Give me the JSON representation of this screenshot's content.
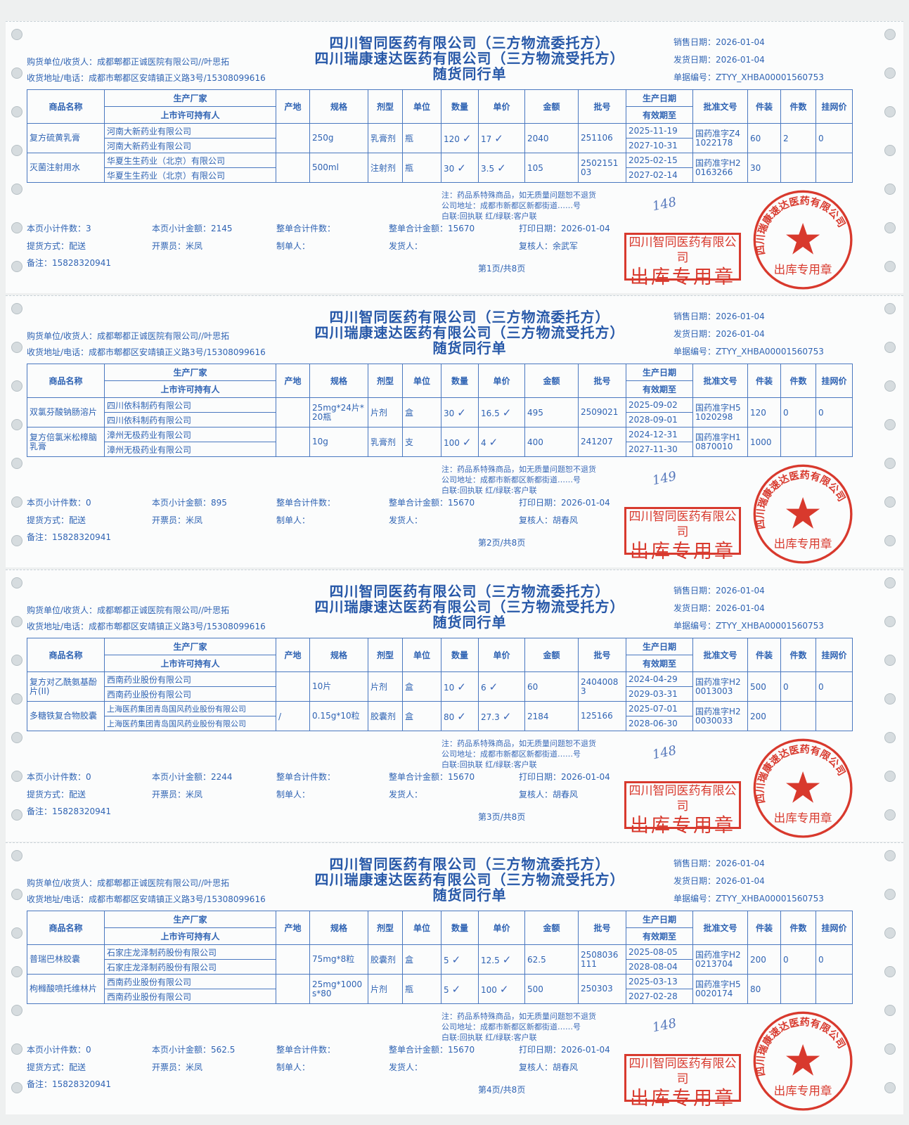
{
  "common": {
    "company_consignor": "四川智同医药有限公司（三方物流委托方）",
    "company_consignee": "四川瑞康速达医药有限公司（三方物流受托方）",
    "doc_title": "随货同行单",
    "buyer_label": "购货单位/收货人：",
    "buyer": "成都郫都正诚医院有限公司//叶思拓",
    "address_label": "收货地址/电话：",
    "address": "成都市郫都区安靖镇正义路3号/15308099616",
    "sale_date_label": "销售日期：",
    "sale_date": "2026-01-04",
    "ship_date_label": "发货日期：",
    "ship_date": "2026-01-04",
    "doc_no_label": "单据编号：",
    "doc_no": "ZTYY_XHBA00001560753",
    "columns": {
      "name": "商品名称",
      "manufacturer": "生产厂家",
      "license_holder": "上市许可持有人",
      "origin": "产地",
      "spec": "规格",
      "form": "剂型",
      "unit": "单位",
      "qty": "数量",
      "price": "单价",
      "amount": "金额",
      "batch": "批号",
      "prod_date": "生产日期",
      "expiry": "有效期至",
      "approval": "批准文号",
      "pack": "件装",
      "pieces": "件数",
      "net_price": "挂网价"
    },
    "footer": {
      "page_count_label": "本页小计件数：",
      "page_amount_label": "本页小计金额：",
      "total_count_label": "整单合计件数：",
      "total_amount_label": "整单合计金额：",
      "total_amount": "15670",
      "print_date_label": "打印日期：",
      "print_date": "2026-01-04",
      "delivery_label": "提货方式：",
      "delivery": "配送",
      "invoicer_label": "开票员：",
      "invoicer": "米凤",
      "maker_label": "制单人：",
      "shipper_label": "发货人：",
      "reviewer_label": "复核人：",
      "remark_label": "备注：",
      "remark": "15828320941",
      "notice": "注：药品系特殊商品，如无质量问题恕不退货",
      "company_address": "公司地址：成都市新都区新都街道……号",
      "copies": "白联:回执联   红/绿联:客户联"
    },
    "stamp_rect": {
      "line1": "四川智同医药有限公司",
      "line2": "出库专用章"
    },
    "stamp_round": {
      "ring": "四川瑞康速达医药有限公司",
      "center": "出库专用章"
    },
    "stamp_color": "#d8392d",
    "ink_color": "#2f63b3"
  },
  "sections": [
    {
      "items": [
        {
          "name": "复方硫黄乳膏",
          "manufacturer": "河南大新药业有限公司",
          "license_holder": "河南大新药业有限公司",
          "origin": "",
          "spec": "250g",
          "form": "乳膏剂",
          "unit": "瓶",
          "qty": "120",
          "price": "17",
          "amount": "2040",
          "batch": "251106",
          "prod_date": "2025-11-19",
          "expiry": "2027-10-31",
          "approval": "国药准字Z41022178",
          "pack": "60",
          "pieces": "2",
          "net_price": "0"
        },
        {
          "name": "灭菌注射用水",
          "manufacturer": "华夏生生药业（北京）有限公司",
          "license_holder": "华夏生生药业（北京）有限公司",
          "origin": "",
          "spec": "500ml",
          "form": "注射剂",
          "unit": "瓶",
          "qty": "30",
          "price": "3.5",
          "amount": "105",
          "batch": "250215103",
          "prod_date": "2025-02-15",
          "expiry": "2027-02-14",
          "approval": "国药准字H20163266",
          "pack": "30",
          "pieces": "",
          "net_price": ""
        }
      ],
      "page_count": "3",
      "page_amount": "2145",
      "reviewer": "余武军",
      "page_label": "第1页/共8页",
      "handwriting": "148"
    },
    {
      "items": [
        {
          "name": "双氯芬酸钠肠溶片",
          "manufacturer": "四川依科制药有限公司",
          "license_holder": "四川依科制药有限公司",
          "origin": "",
          "spec": "25mg*24片*20瓶",
          "form": "片剂",
          "unit": "盒",
          "qty": "30",
          "price": "16.5",
          "amount": "495",
          "batch": "2509021",
          "prod_date": "2025-09-02",
          "expiry": "2028-09-01",
          "approval": "国药准字H51020298",
          "pack": "120",
          "pieces": "0",
          "net_price": "0"
        },
        {
          "name": "复方倍氯米松樟脑乳膏",
          "manufacturer": "漳州无极药业有限公司",
          "license_holder": "漳州无极药业有限公司",
          "origin": "",
          "spec": "10g",
          "form": "乳膏剂",
          "unit": "支",
          "qty": "100",
          "price": "4",
          "amount": "400",
          "batch": "241207",
          "prod_date": "2024-12-31",
          "expiry": "2027-11-30",
          "approval": "国药准字H10870010",
          "pack": "1000",
          "pieces": "",
          "net_price": ""
        }
      ],
      "page_count": "0",
      "page_amount": "895",
      "reviewer": "胡春风",
      "page_label": "第2页/共8页",
      "handwriting": "149"
    },
    {
      "items": [
        {
          "name": "复方对乙酰氨基酚片(II)",
          "manufacturer": "西南药业股份有限公司",
          "license_holder": "西南药业股份有限公司",
          "origin": "",
          "spec": "10片",
          "form": "片剂",
          "unit": "盒",
          "qty": "10",
          "price": "6",
          "amount": "60",
          "batch": "24040083",
          "prod_date": "2024-04-29",
          "expiry": "2029-03-31",
          "approval": "国药准字H20013003",
          "pack": "500",
          "pieces": "0",
          "net_price": "0"
        },
        {
          "name": "多糖铁复合物胶囊",
          "manufacturer": "上海医药集团青岛国风药业股份有限公司",
          "license_holder": "上海医药集团青岛国风药业股份有限公司",
          "origin": "/",
          "spec": "0.15g*10粒",
          "form": "胶囊剂",
          "unit": "盒",
          "qty": "80",
          "price": "27.3",
          "amount": "2184",
          "batch": "125166",
          "prod_date": "2025-07-01",
          "expiry": "2028-06-30",
          "approval": "国药准字H20030033",
          "pack": "200",
          "pieces": "",
          "net_price": ""
        }
      ],
      "page_count": "0",
      "page_amount": "2244",
      "reviewer": "胡春风",
      "page_label": "第3页/共8页",
      "handwriting": "148"
    },
    {
      "items": [
        {
          "name": "普瑞巴林胶囊",
          "manufacturer": "石家庄龙泽制药股份有限公司",
          "license_holder": "石家庄龙泽制药股份有限公司",
          "origin": "",
          "spec": "75mg*8粒",
          "form": "胶囊剂",
          "unit": "盒",
          "qty": "5",
          "price": "12.5",
          "amount": "62.5",
          "batch": "2508036111",
          "prod_date": "2025-08-05",
          "expiry": "2028-08-04",
          "approval": "国药准字H20213704",
          "pack": "200",
          "pieces": "0",
          "net_price": "0"
        },
        {
          "name": "枸橼酸喷托维林片",
          "manufacturer": "西南药业股份有限公司",
          "license_holder": "西南药业股份有限公司",
          "origin": "",
          "spec": "25mg*1000s*80",
          "form": "片剂",
          "unit": "瓶",
          "qty": "5",
          "price": "100",
          "amount": "500",
          "batch": "250303",
          "prod_date": "2025-03-13",
          "expiry": "2027-02-28",
          "approval": "国药准字H50020174",
          "pack": "80",
          "pieces": "",
          "net_price": ""
        }
      ],
      "page_count": "0",
      "page_amount": "562.5",
      "reviewer": "胡春风",
      "page_label": "第4页/共8页",
      "handwriting": "148"
    }
  ]
}
